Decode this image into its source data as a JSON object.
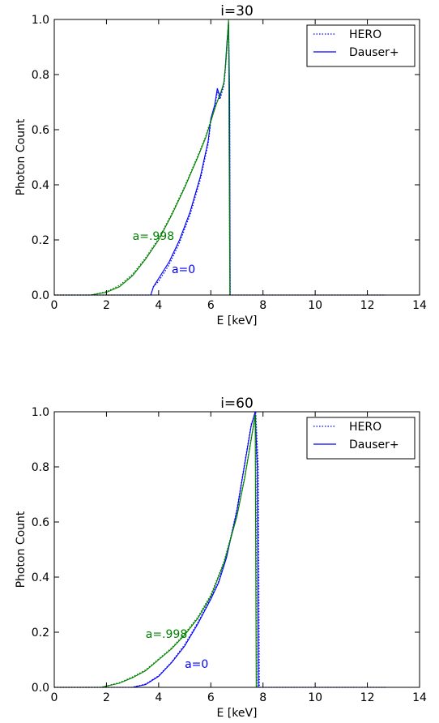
{
  "colors": {
    "blue": "#0000ff",
    "green": "#008000",
    "axis": "#000000",
    "background": "#ffffff"
  },
  "legend_labels": [
    "HERO",
    "Dauser+"
  ],
  "chart_data": [
    {
      "type": "line",
      "title": "i=30",
      "xlabel": "E [keV]",
      "ylabel": "Photon Count",
      "xlim": [
        0,
        14
      ],
      "ylim": [
        0,
        1.0
      ],
      "xticks": [
        "0",
        "2",
        "4",
        "6",
        "8",
        "10",
        "12",
        "14"
      ],
      "yticks": [
        "0.0",
        "0.2",
        "0.4",
        "0.6",
        "0.8",
        "1.0"
      ],
      "grid": false,
      "legend_position": "top-right",
      "legend": [
        {
          "label": "HERO",
          "style": "dotted",
          "color": "#0000ff"
        },
        {
          "label": "Dauser+",
          "style": "solid",
          "color": "#0000ff"
        }
      ],
      "annotations": [
        {
          "text": "a=.998",
          "color": "#008000",
          "x": 3.0,
          "y": 0.2
        },
        {
          "text": "a=0",
          "color": "#0000ff",
          "x": 4.5,
          "y": 0.08
        }
      ],
      "series": [
        {
          "color": "#0000ff",
          "style": "solid",
          "points": [
            [
              0,
              0
            ],
            [
              3.7,
              0
            ],
            [
              3.8,
              0.03
            ],
            [
              4.0,
              0.06
            ],
            [
              4.4,
              0.12
            ],
            [
              4.8,
              0.2
            ],
            [
              5.2,
              0.3
            ],
            [
              5.6,
              0.43
            ],
            [
              5.9,
              0.56
            ],
            [
              6.0,
              0.64
            ],
            [
              6.15,
              0.69
            ],
            [
              6.25,
              0.75
            ],
            [
              6.35,
              0.72
            ],
            [
              6.5,
              0.77
            ],
            [
              6.55,
              0.82
            ],
            [
              6.62,
              0.92
            ],
            [
              6.68,
              0.99
            ],
            [
              6.72,
              0.72
            ],
            [
              6.74,
              0
            ]
          ]
        },
        {
          "color": "#0000ff",
          "style": "dotted",
          "points": [
            [
              0,
              0
            ],
            [
              3.7,
              0
            ],
            [
              3.8,
              0.03
            ],
            [
              4.0,
              0.05
            ],
            [
              4.4,
              0.11
            ],
            [
              4.8,
              0.19
            ],
            [
              5.2,
              0.29
            ],
            [
              5.6,
              0.42
            ],
            [
              5.9,
              0.55
            ],
            [
              6.0,
              0.63
            ],
            [
              6.15,
              0.68
            ],
            [
              6.25,
              0.74
            ],
            [
              6.35,
              0.71
            ],
            [
              6.5,
              0.76
            ],
            [
              6.55,
              0.81
            ],
            [
              6.62,
              0.91
            ],
            [
              6.68,
              0.98
            ],
            [
              6.72,
              0.7
            ],
            [
              6.74,
              0
            ],
            [
              12.7,
              0
            ]
          ]
        },
        {
          "color": "#008000",
          "style": "solid",
          "points": [
            [
              0,
              0
            ],
            [
              1.4,
              0
            ],
            [
              2.0,
              0.01
            ],
            [
              2.5,
              0.03
            ],
            [
              3.0,
              0.07
            ],
            [
              3.5,
              0.13
            ],
            [
              4.0,
              0.2
            ],
            [
              4.5,
              0.29
            ],
            [
              5.0,
              0.39
            ],
            [
              5.5,
              0.5
            ],
            [
              5.8,
              0.57
            ],
            [
              6.0,
              0.63
            ],
            [
              6.2,
              0.69
            ],
            [
              6.4,
              0.74
            ],
            [
              6.5,
              0.77
            ],
            [
              6.58,
              0.85
            ],
            [
              6.68,
              1.0
            ],
            [
              6.73,
              0
            ],
            [
              12.7,
              0
            ]
          ]
        },
        {
          "color": "#008000",
          "style": "dotted",
          "points": [
            [
              0,
              0
            ],
            [
              1.4,
              0
            ],
            [
              2.0,
              0.012
            ],
            [
              2.5,
              0.035
            ],
            [
              3.0,
              0.075
            ],
            [
              3.5,
              0.135
            ],
            [
              4.0,
              0.205
            ],
            [
              4.5,
              0.295
            ],
            [
              5.0,
              0.395
            ],
            [
              5.5,
              0.505
            ],
            [
              5.8,
              0.575
            ],
            [
              6.0,
              0.635
            ],
            [
              6.2,
              0.69
            ],
            [
              6.4,
              0.74
            ],
            [
              6.5,
              0.77
            ],
            [
              6.58,
              0.85
            ],
            [
              6.68,
              0.99
            ],
            [
              6.73,
              0
            ]
          ]
        }
      ]
    },
    {
      "type": "line",
      "title": "i=60",
      "xlabel": "E [keV]",
      "ylabel": "Photon Count",
      "xlim": [
        0,
        14
      ],
      "ylim": [
        0,
        1.0
      ],
      "xticks": [
        "0",
        "2",
        "4",
        "6",
        "8",
        "10",
        "12",
        "14"
      ],
      "yticks": [
        "0.0",
        "0.2",
        "0.4",
        "0.6",
        "0.8",
        "1.0"
      ],
      "grid": false,
      "legend_position": "top-right",
      "legend": [
        {
          "label": "HERO",
          "style": "dotted",
          "color": "#0000ff"
        },
        {
          "label": "Dauser+",
          "style": "solid",
          "color": "#0000ff"
        }
      ],
      "annotations": [
        {
          "text": "a=.998",
          "color": "#008000",
          "x": 3.5,
          "y": 0.18
        },
        {
          "text": "a=0",
          "color": "#0000ff",
          "x": 5.0,
          "y": 0.07
        }
      ],
      "series": [
        {
          "color": "#0000ff",
          "style": "solid",
          "points": [
            [
              0,
              0
            ],
            [
              3.0,
              0
            ],
            [
              3.5,
              0.01
            ],
            [
              4.0,
              0.04
            ],
            [
              4.5,
              0.09
            ],
            [
              5.0,
              0.15
            ],
            [
              5.5,
              0.23
            ],
            [
              6.0,
              0.32
            ],
            [
              6.3,
              0.38
            ],
            [
              6.6,
              0.47
            ],
            [
              7.0,
              0.64
            ],
            [
              7.3,
              0.81
            ],
            [
              7.55,
              0.95
            ],
            [
              7.7,
              1.0
            ],
            [
              7.78,
              0.8
            ],
            [
              7.82,
              0
            ]
          ]
        },
        {
          "color": "#0000ff",
          "style": "dotted",
          "points": [
            [
              0,
              0
            ],
            [
              3.0,
              0
            ],
            [
              3.5,
              0.012
            ],
            [
              4.0,
              0.042
            ],
            [
              4.5,
              0.092
            ],
            [
              5.0,
              0.155
            ],
            [
              5.5,
              0.235
            ],
            [
              6.0,
              0.325
            ],
            [
              6.3,
              0.385
            ],
            [
              6.6,
              0.475
            ],
            [
              7.0,
              0.645
            ],
            [
              7.3,
              0.815
            ],
            [
              7.55,
              0.955
            ],
            [
              7.72,
              1.0
            ],
            [
              7.82,
              0.8
            ],
            [
              7.86,
              0
            ],
            [
              12.7,
              0
            ]
          ]
        },
        {
          "color": "#008000",
          "style": "solid",
          "points": [
            [
              0,
              0
            ],
            [
              1.8,
              0
            ],
            [
              2.5,
              0.015
            ],
            [
              3.0,
              0.035
            ],
            [
              3.5,
              0.06
            ],
            [
              4.0,
              0.1
            ],
            [
              4.5,
              0.14
            ],
            [
              5.0,
              0.19
            ],
            [
              5.5,
              0.25
            ],
            [
              6.0,
              0.33
            ],
            [
              6.5,
              0.45
            ],
            [
              7.0,
              0.62
            ],
            [
              7.3,
              0.76
            ],
            [
              7.55,
              0.9
            ],
            [
              7.7,
              0.99
            ],
            [
              7.74,
              0
            ],
            [
              12.7,
              0
            ]
          ]
        },
        {
          "color": "#008000",
          "style": "dotted",
          "points": [
            [
              0,
              0
            ],
            [
              1.8,
              0
            ],
            [
              2.5,
              0.017
            ],
            [
              3.0,
              0.038
            ],
            [
              3.5,
              0.063
            ],
            [
              4.0,
              0.103
            ],
            [
              4.5,
              0.143
            ],
            [
              5.0,
              0.195
            ],
            [
              5.5,
              0.255
            ],
            [
              6.0,
              0.335
            ],
            [
              6.5,
              0.455
            ],
            [
              7.0,
              0.625
            ],
            [
              7.3,
              0.765
            ],
            [
              7.55,
              0.905
            ],
            [
              7.72,
              0.99
            ],
            [
              7.76,
              0
            ]
          ]
        }
      ]
    }
  ]
}
